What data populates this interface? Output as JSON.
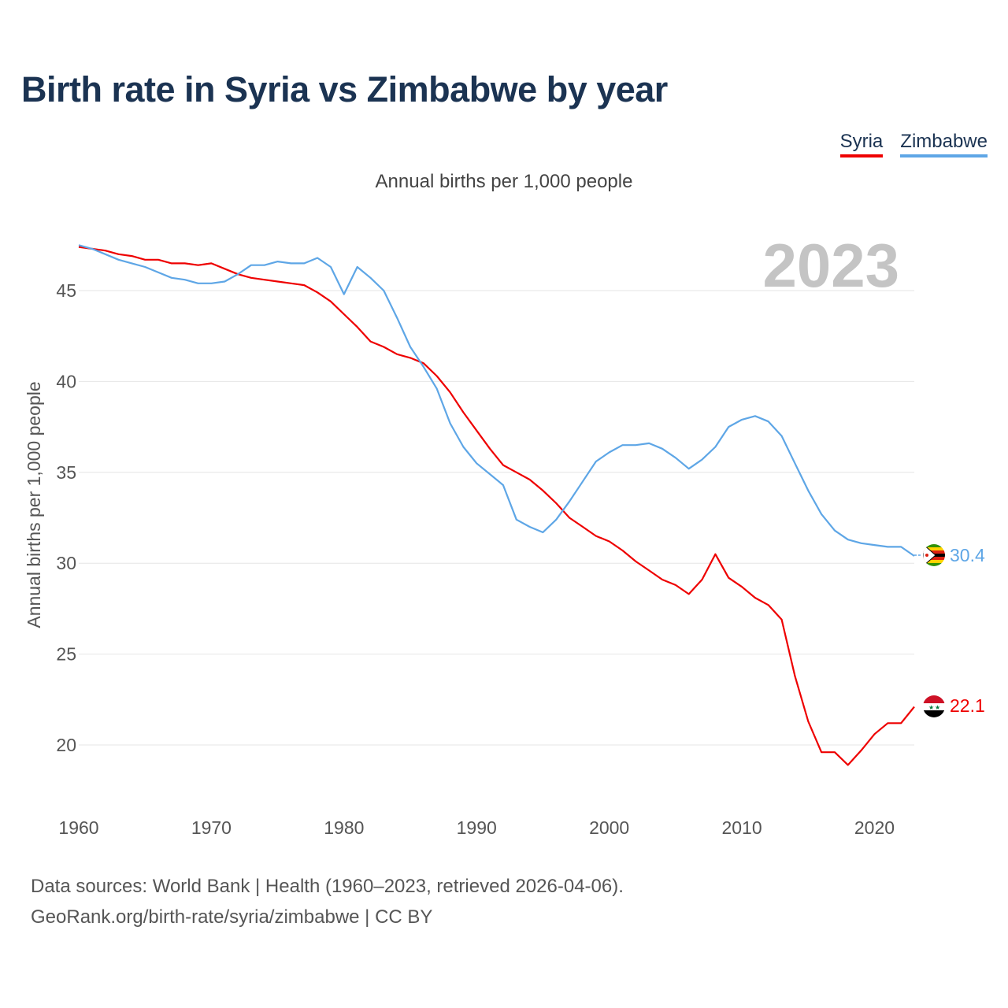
{
  "page": {
    "title": "Birth rate in Syria vs Zimbabwe by year",
    "subtitle": "Annual births per 1,000 people",
    "year_watermark": "2023",
    "footer_line1": "Data sources: World Bank | Health (1960–2023, retrieved 2026-04-06).",
    "footer_line2": "GeoRank.org/birth-rate/syria/zimbabwe | CC BY"
  },
  "legend": {
    "items": [
      {
        "label": "Syria",
        "color": "#ee0000"
      },
      {
        "label": "Zimbabwe",
        "color": "#5ea6e6"
      }
    ]
  },
  "chart_data": {
    "type": "line",
    "title": "Birth rate in Syria vs Zimbabwe by year",
    "xlabel": "",
    "ylabel": "Annual births per 1,000 people",
    "xlim": [
      1960,
      2023
    ],
    "ylim": [
      17,
      48
    ],
    "x_ticks": [
      1960,
      1970,
      1980,
      1990,
      2000,
      2010,
      2020
    ],
    "y_ticks": [
      20,
      25,
      30,
      35,
      40,
      45
    ],
    "grid": true,
    "x": [
      1960,
      1961,
      1962,
      1963,
      1964,
      1965,
      1966,
      1967,
      1968,
      1969,
      1970,
      1971,
      1972,
      1973,
      1974,
      1975,
      1976,
      1977,
      1978,
      1979,
      1980,
      1981,
      1982,
      1983,
      1984,
      1985,
      1986,
      1987,
      1988,
      1989,
      1990,
      1991,
      1992,
      1993,
      1994,
      1995,
      1996,
      1997,
      1998,
      1999,
      2000,
      2001,
      2002,
      2003,
      2004,
      2005,
      2006,
      2007,
      2008,
      2009,
      2010,
      2011,
      2012,
      2013,
      2014,
      2015,
      2016,
      2017,
      2018,
      2019,
      2020,
      2021,
      2022,
      2023
    ],
    "series": [
      {
        "name": "Syria",
        "color": "#ee0000",
        "end_label": "22.1",
        "values": [
          47.4,
          47.3,
          47.2,
          47.0,
          46.9,
          46.7,
          46.7,
          46.5,
          46.5,
          46.4,
          46.5,
          46.2,
          45.9,
          45.7,
          45.6,
          45.5,
          45.4,
          45.3,
          44.9,
          44.4,
          43.7,
          43.0,
          42.2,
          41.9,
          41.5,
          41.3,
          41.0,
          40.3,
          39.4,
          38.3,
          37.3,
          36.3,
          35.4,
          35.0,
          34.6,
          34.0,
          33.3,
          32.5,
          32.0,
          31.5,
          31.2,
          30.7,
          30.1,
          29.6,
          29.1,
          28.8,
          28.3,
          29.1,
          30.5,
          29.2,
          28.7,
          28.1,
          27.7,
          26.9,
          23.8,
          21.3,
          19.6,
          19.6,
          18.9,
          19.7,
          20.6,
          21.2,
          21.2,
          22.1
        ]
      },
      {
        "name": "Zimbabwe",
        "color": "#5ea6e6",
        "end_label": "30.4",
        "values": [
          47.5,
          47.3,
          47.0,
          46.7,
          46.5,
          46.3,
          46.0,
          45.7,
          45.6,
          45.4,
          45.4,
          45.5,
          45.9,
          46.4,
          46.4,
          46.6,
          46.5,
          46.5,
          46.8,
          46.3,
          44.8,
          46.3,
          45.7,
          45.0,
          43.5,
          41.9,
          40.8,
          39.6,
          37.7,
          36.4,
          35.5,
          34.9,
          34.3,
          32.4,
          32.0,
          31.7,
          32.4,
          33.4,
          34.5,
          35.6,
          36.1,
          36.5,
          36.5,
          36.6,
          36.3,
          35.8,
          35.2,
          35.7,
          36.4,
          37.5,
          37.9,
          38.1,
          37.8,
          37.0,
          35.5,
          34.0,
          32.7,
          31.8,
          31.3,
          31.1,
          31.0,
          30.9,
          30.9,
          30.4
        ]
      }
    ]
  }
}
